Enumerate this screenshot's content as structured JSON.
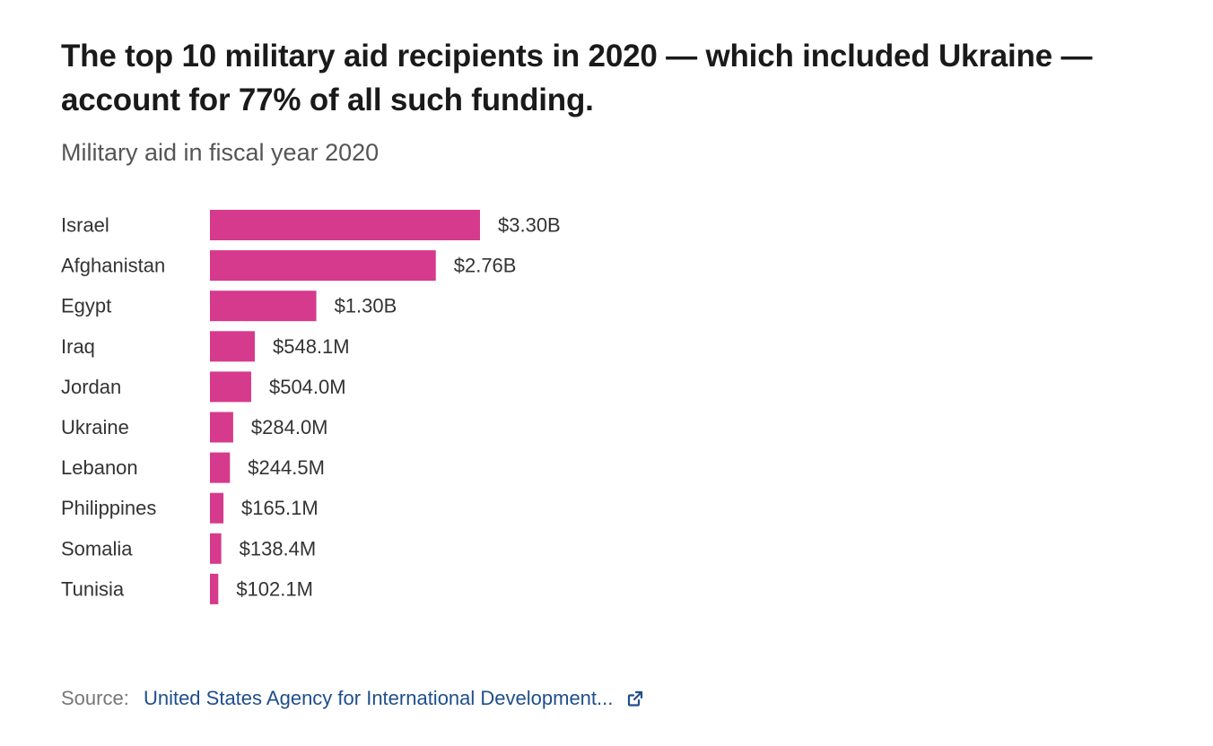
{
  "chart_data": {
    "type": "bar",
    "orientation": "horizontal",
    "title": "The top 10 military aid recipients in 2020 — which included Ukraine — account for 77% of all such funding.",
    "subtitle": "Military aid in fiscal year 2020",
    "categories": [
      "Israel",
      "Afghanistan",
      "Egypt",
      "Iraq",
      "Jordan",
      "Ukraine",
      "Lebanon",
      "Philippines",
      "Somalia",
      "Tunisia"
    ],
    "values": [
      3300000000,
      2760000000,
      1300000000,
      548100000,
      504000000,
      284000000,
      244500000,
      165100000,
      138400000,
      102100000
    ],
    "value_labels": [
      "$3.30B",
      "$2.76B",
      "$1.30B",
      "$548.1M",
      "$504.0M",
      "$284.0M",
      "$244.5M",
      "$165.1M",
      "$138.4M",
      "$102.1M"
    ],
    "xlabel": "",
    "ylabel": "",
    "xlim": [
      0,
      3300000000
    ],
    "grid": false,
    "bar_color": "#d63a8c"
  },
  "source": {
    "label": "Source:",
    "link_text": "United States Agency for International Development..."
  },
  "icons": {
    "source_link": "external-link-icon"
  }
}
